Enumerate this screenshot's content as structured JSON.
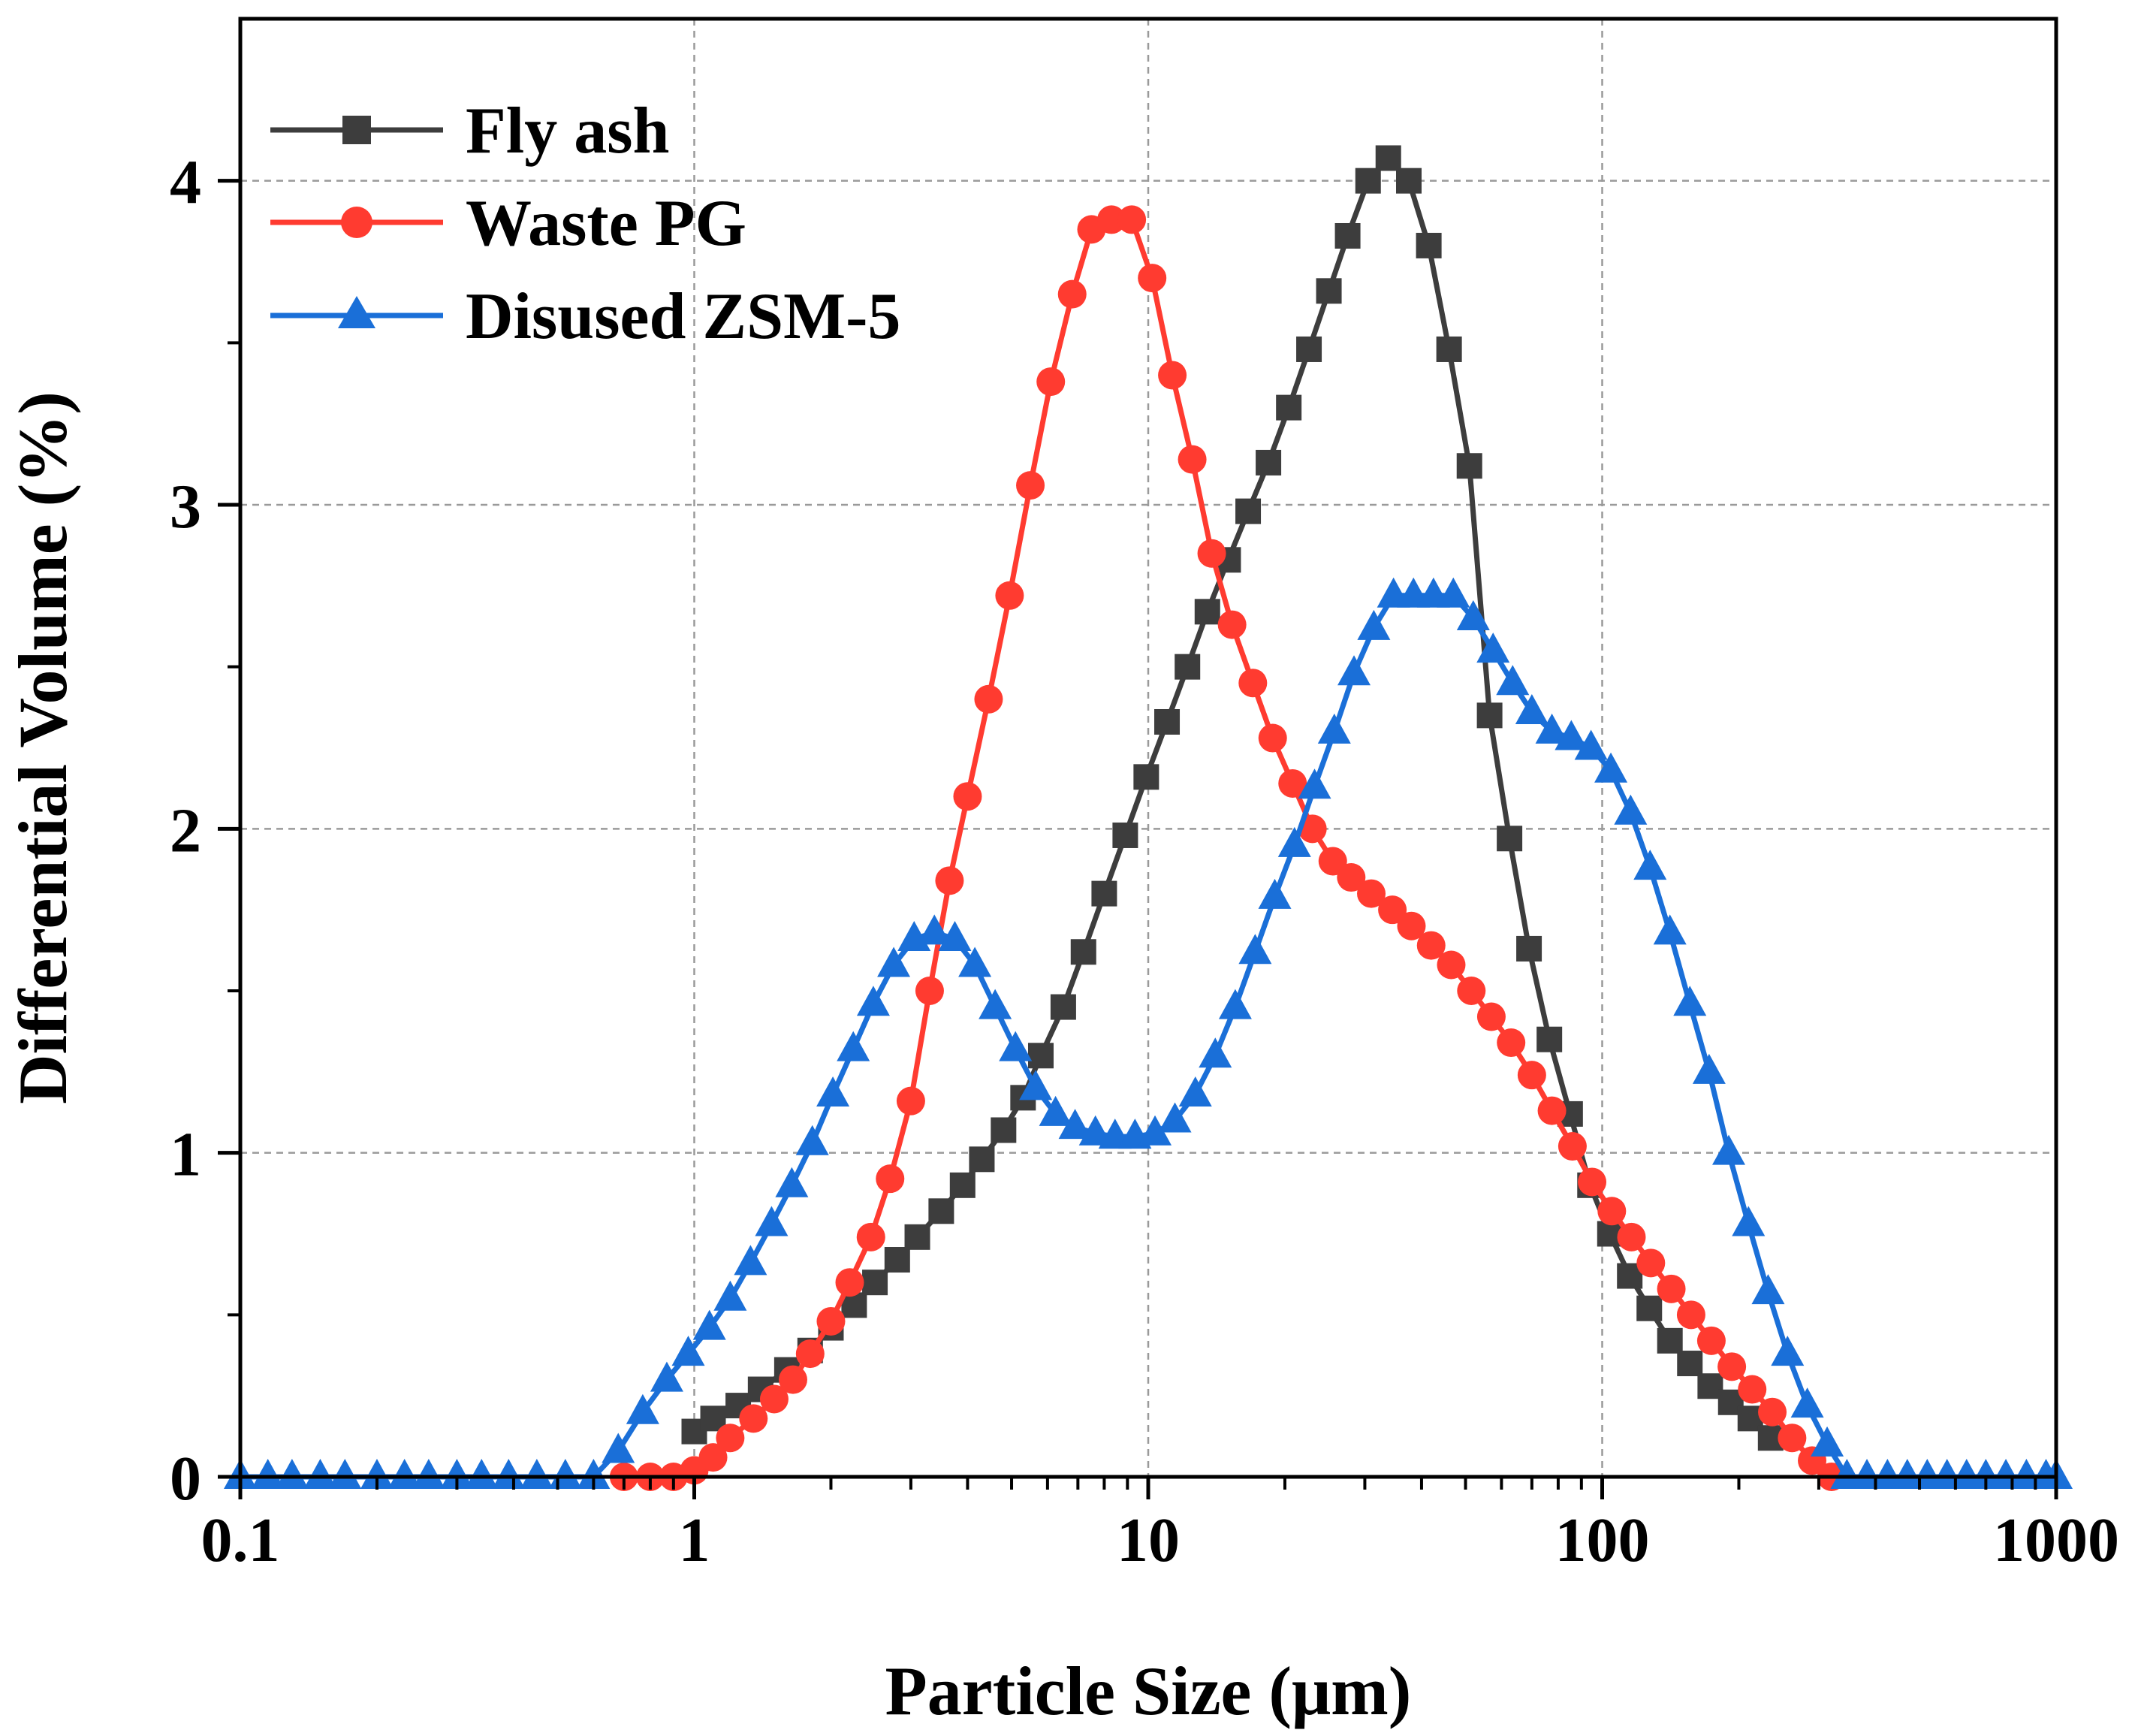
{
  "chart_data": {
    "type": "line",
    "xscale": "log",
    "xlabel": "Particle Size (μm)",
    "ylabel": "Differential Volume (%)",
    "xlim": [
      0.1,
      1000
    ],
    "ylim": [
      0,
      4.5
    ],
    "x_ticks": [
      {
        "value": 0.1,
        "label": "0.1"
      },
      {
        "value": 1,
        "label": "1"
      },
      {
        "value": 10,
        "label": "10"
      },
      {
        "value": 100,
        "label": "100"
      },
      {
        "value": 1000,
        "label": "1000"
      }
    ],
    "y_ticks": [
      {
        "value": 0,
        "label": "0"
      },
      {
        "value": 1,
        "label": "1"
      },
      {
        "value": 2,
        "label": "2"
      },
      {
        "value": 3,
        "label": "3"
      },
      {
        "value": 4,
        "label": "4"
      }
    ],
    "grid": true,
    "legend_position": "top-left",
    "series": [
      {
        "name": "Fly ash",
        "color": "#3d3d3d",
        "marker": "square",
        "x": [
          1.0,
          1.1,
          1.25,
          1.4,
          1.6,
          1.8,
          2.0,
          2.25,
          2.5,
          2.8,
          3.1,
          3.5,
          3.9,
          4.3,
          4.8,
          5.3,
          5.8,
          6.5,
          7.2,
          8.0,
          8.9,
          9.9,
          11.0,
          12.2,
          13.5,
          15.0,
          16.6,
          18.4,
          20.4,
          22.6,
          25.0,
          27.5,
          30.5,
          33.8,
          37.5,
          41.5,
          46.0,
          51.0,
          56.5,
          62.5,
          69.0,
          76.5,
          85.0,
          94.0,
          104.0,
          115.0,
          127.0,
          141.0,
          156.0,
          173.0,
          192.0,
          212.0,
          235.0
        ],
        "y": [
          0.14,
          0.18,
          0.22,
          0.27,
          0.33,
          0.39,
          0.46,
          0.53,
          0.6,
          0.67,
          0.74,
          0.82,
          0.9,
          0.98,
          1.07,
          1.17,
          1.3,
          1.45,
          1.62,
          1.8,
          1.98,
          2.16,
          2.33,
          2.5,
          2.67,
          2.83,
          2.98,
          3.13,
          3.3,
          3.48,
          3.66,
          3.83,
          4.0,
          4.07,
          4.0,
          3.8,
          3.48,
          3.12,
          2.35,
          1.97,
          1.63,
          1.35,
          1.12,
          0.9,
          0.75,
          0.62,
          0.52,
          0.42,
          0.35,
          0.28,
          0.23,
          0.18,
          0.12
        ]
      },
      {
        "name": "Waste PG",
        "color": "#ff3b30",
        "marker": "circle",
        "x": [
          0.7,
          0.8,
          0.9,
          1.0,
          1.1,
          1.2,
          1.35,
          1.5,
          1.65,
          1.8,
          2.0,
          2.2,
          2.45,
          2.7,
          3.0,
          3.3,
          3.65,
          4.0,
          4.45,
          4.95,
          5.5,
          6.1,
          6.8,
          7.5,
          8.3,
          9.2,
          10.2,
          11.3,
          12.5,
          13.8,
          15.3,
          17.0,
          18.8,
          20.8,
          23.0,
          25.5,
          28.0,
          31.0,
          34.5,
          38.0,
          42.0,
          46.5,
          51.5,
          57.0,
          63.0,
          70.0,
          77.5,
          86.0,
          95.0,
          105.0,
          116.0,
          128.0,
          142.0,
          157.0,
          174.0,
          193.0,
          214.0,
          237.0,
          262.0,
          290.0,
          320.0
        ],
        "y": [
          0.0,
          0.0,
          0.0,
          0.02,
          0.06,
          0.12,
          0.18,
          0.24,
          0.3,
          0.38,
          0.48,
          0.6,
          0.74,
          0.92,
          1.16,
          1.5,
          1.84,
          2.1,
          2.4,
          2.72,
          3.06,
          3.38,
          3.65,
          3.85,
          3.88,
          3.88,
          3.7,
          3.4,
          3.14,
          2.85,
          2.63,
          2.45,
          2.28,
          2.14,
          2.0,
          1.9,
          1.85,
          1.8,
          1.75,
          1.7,
          1.64,
          1.58,
          1.5,
          1.42,
          1.34,
          1.24,
          1.13,
          1.02,
          0.91,
          0.82,
          0.74,
          0.66,
          0.58,
          0.5,
          0.42,
          0.34,
          0.27,
          0.2,
          0.12,
          0.05,
          0.0
        ]
      },
      {
        "name": "Disused ZSM-5",
        "color": "#1a6fd8",
        "marker": "triangle",
        "x": [
          0.1,
          0.115,
          0.13,
          0.15,
          0.17,
          0.2,
          0.23,
          0.26,
          0.3,
          0.34,
          0.39,
          0.45,
          0.52,
          0.6,
          0.68,
          0.77,
          0.87,
          0.97,
          1.08,
          1.2,
          1.33,
          1.48,
          1.64,
          1.82,
          2.02,
          2.24,
          2.48,
          2.75,
          3.05,
          3.38,
          3.75,
          4.15,
          4.6,
          5.1,
          5.65,
          6.25,
          6.9,
          7.65,
          8.45,
          9.35,
          10.35,
          11.45,
          12.7,
          14.05,
          15.55,
          17.2,
          19.0,
          21.0,
          23.25,
          25.7,
          28.4,
          31.4,
          34.7,
          38.4,
          42.5,
          47.0,
          52.0,
          57.5,
          63.5,
          70.0,
          77.5,
          85.5,
          94.5,
          104.5,
          115.5,
          127.5,
          141.0,
          156.0,
          172.0,
          190.0,
          210.0,
          232.0,
          256.0,
          283.0,
          313.0,
          346.0,
          383.0,
          425.0,
          470.0,
          520.0,
          575.0,
          635.0,
          700.0,
          775.0,
          860.0,
          950.0,
          1000.0
        ],
        "y": [
          0.0,
          0.0,
          0.0,
          0.0,
          0.0,
          0.0,
          0.0,
          0.0,
          0.0,
          0.0,
          0.0,
          0.0,
          0.0,
          0.0,
          0.08,
          0.2,
          0.3,
          0.38,
          0.46,
          0.55,
          0.66,
          0.78,
          0.9,
          1.03,
          1.18,
          1.32,
          1.46,
          1.58,
          1.66,
          1.68,
          1.66,
          1.58,
          1.45,
          1.32,
          1.2,
          1.12,
          1.08,
          1.06,
          1.05,
          1.05,
          1.06,
          1.1,
          1.18,
          1.3,
          1.45,
          1.62,
          1.79,
          1.95,
          2.13,
          2.3,
          2.48,
          2.62,
          2.72,
          2.72,
          2.72,
          2.72,
          2.65,
          2.55,
          2.45,
          2.36,
          2.3,
          2.28,
          2.25,
          2.18,
          2.05,
          1.88,
          1.68,
          1.46,
          1.25,
          1.0,
          0.78,
          0.57,
          0.38,
          0.22,
          0.1,
          0.0,
          0.0,
          0.0,
          0.0,
          0.0,
          0.0,
          0.0,
          0.0,
          0.0,
          0.0,
          0.0,
          0.0
        ]
      }
    ]
  }
}
